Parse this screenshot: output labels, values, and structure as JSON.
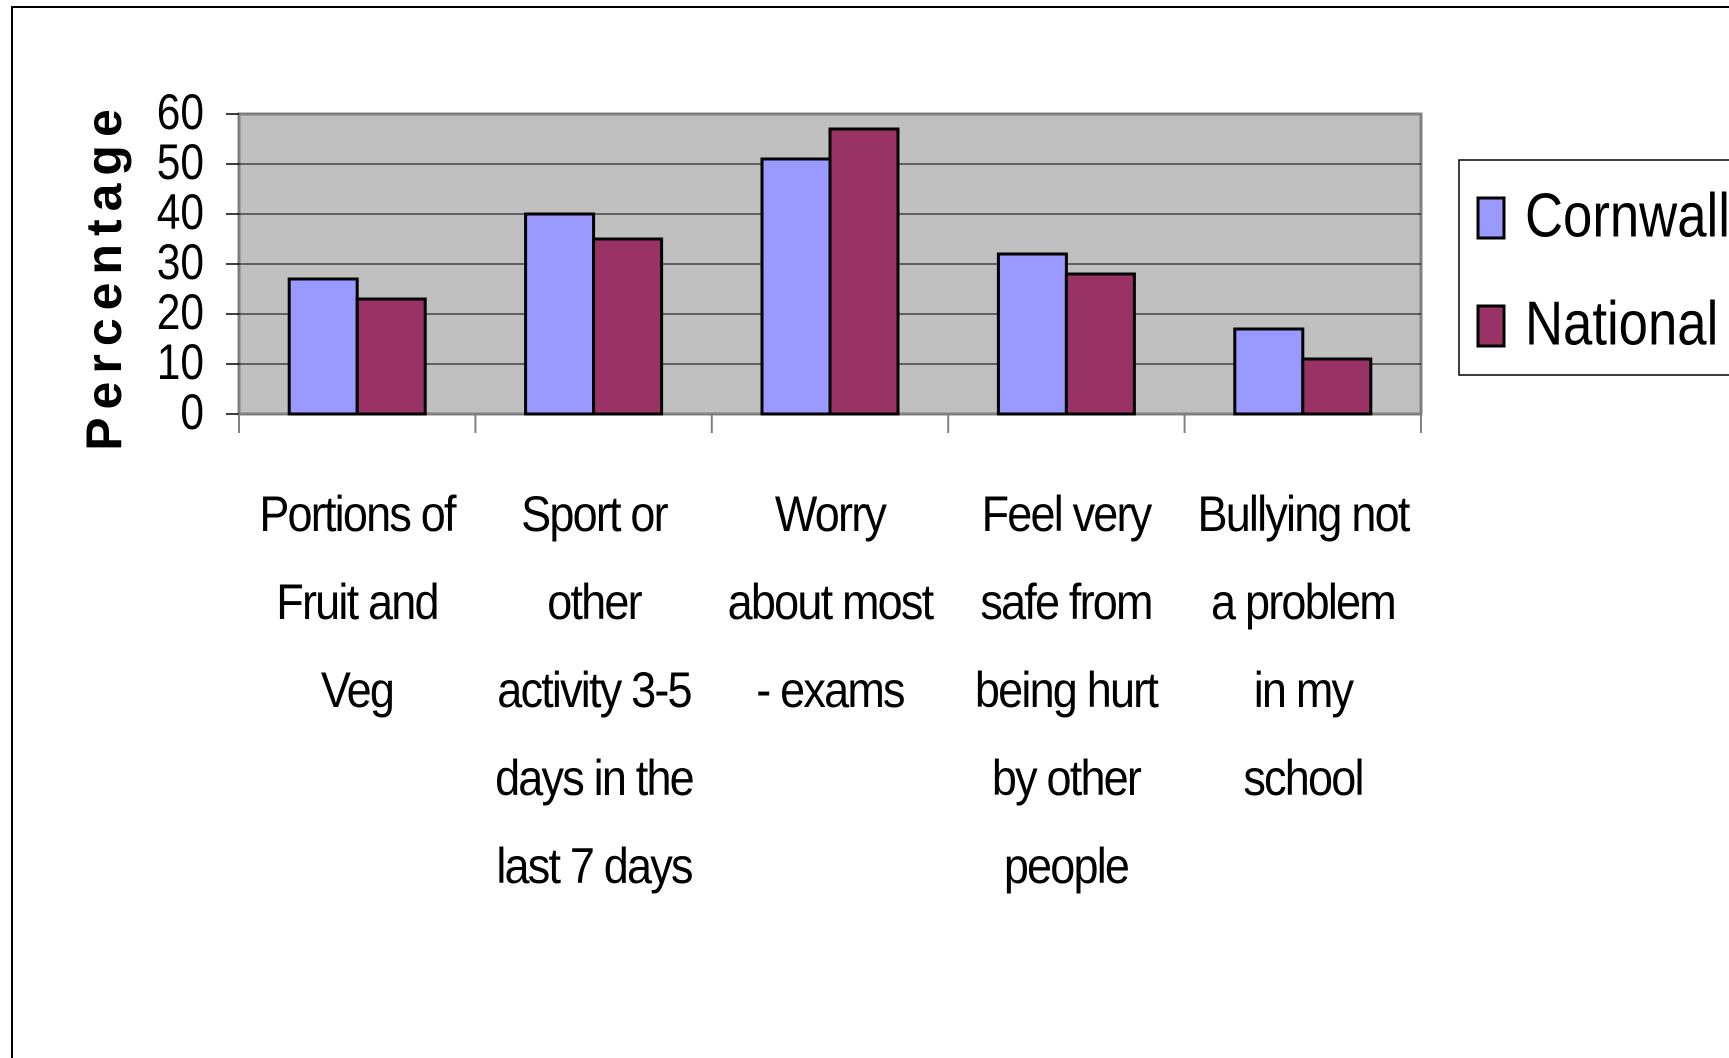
{
  "chart_data": {
    "type": "bar",
    "y_label": "Percentage",
    "categories": [
      "Portions of Fruit and Veg",
      "Sport or other activity 3-5 days  in the last 7 days",
      "Worry about most - exams",
      "Feel very safe from being hurt by other people",
      "Bullying not a problem in my school"
    ],
    "series": [
      {
        "name": "Cornwall",
        "color": "#9999ff",
        "values": [
          27,
          40,
          51,
          32,
          17
        ]
      },
      {
        "name": "National",
        "color": "#993366",
        "values": [
          23,
          35,
          57,
          28,
          11
        ]
      }
    ],
    "ylim": [
      0,
      60
    ],
    "yticks": [
      0,
      10,
      20,
      30,
      40,
      50,
      60
    ],
    "grid": true,
    "legend": "right"
  }
}
